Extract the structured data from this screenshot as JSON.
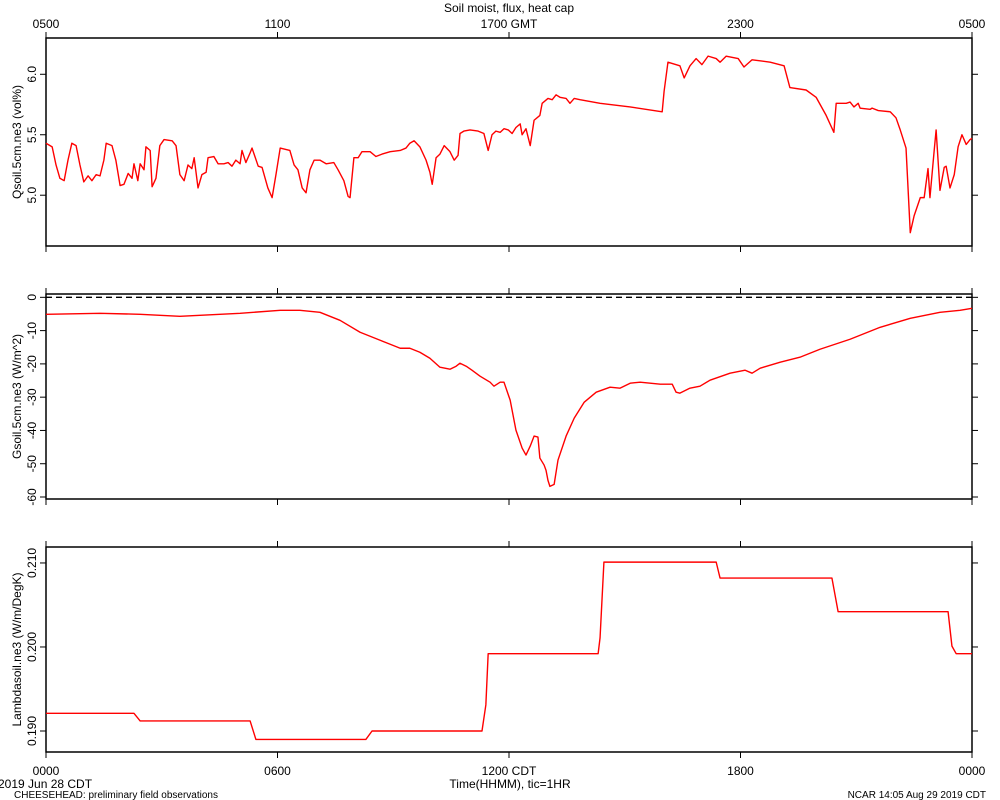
{
  "chart_data": [
    {
      "type": "line",
      "title": "Soil moist, flux, heat cap",
      "ylabel": "Qsoil.5cm.ne3 (vol%)",
      "color": "#ff0000",
      "xlim": [
        0,
        24
      ],
      "ylim": [
        4.58,
        6.3
      ],
      "x2ticks": [
        {
          "value": 0,
          "label": "0500"
        },
        {
          "value": 6,
          "label": "1100"
        },
        {
          "value": 12,
          "label": "1700 GMT"
        },
        {
          "value": 18,
          "label": "2300"
        },
        {
          "value": 24,
          "label": "0500"
        }
      ],
      "yticks": [
        {
          "value": 5,
          "label": "5.0"
        },
        5.5,
        {
          "value": 6,
          "label": "6.0"
        }
      ],
      "x": [
        0,
        0.16,
        0.26,
        0.36,
        0.47,
        0.57,
        0.67,
        0.78,
        0.88,
        0.98,
        1.09,
        1.19,
        1.3,
        1.4,
        1.5,
        1.56,
        1.71,
        1.81,
        1.92,
        2.02,
        2.13,
        2.23,
        2.28,
        2.38,
        2.44,
        2.54,
        2.59,
        2.7,
        2.75,
        2.85,
        2.95,
        3.06,
        3.27,
        3.37,
        3.47,
        3.58,
        3.68,
        3.78,
        3.84,
        3.94,
        4.04,
        4.15,
        4.2,
        4.35,
        4.46,
        4.61,
        4.72,
        4.82,
        4.92,
        5.03,
        5.08,
        5.18,
        5.29,
        5.34,
        5.5,
        5.6,
        5.75,
        5.86,
        5.96,
        6.07,
        6.32,
        6.43,
        6.53,
        6.64,
        6.74,
        6.84,
        6.95,
        7.1,
        7.26,
        7.46,
        7.57,
        7.72,
        7.83,
        7.88,
        7.98,
        8.09,
        8.19,
        8.4,
        8.55,
        8.71,
        8.92,
        9.18,
        9.33,
        9.43,
        9.54,
        9.69,
        9.85,
        9.95,
        10.01,
        10.11,
        10.21,
        10.32,
        10.47,
        10.58,
        10.68,
        10.73,
        10.83,
        10.99,
        11.2,
        11.35,
        11.46,
        11.56,
        11.66,
        11.77,
        11.87,
        11.98,
        12.08,
        12.18,
        12.29,
        12.34,
        12.44,
        12.55,
        12.65,
        12.8,
        12.86,
        13.01,
        13.12,
        13.22,
        13.32,
        13.48,
        13.58,
        13.69,
        13.84,
        14.36,
        15.14,
        15.97,
        16.02,
        16.12,
        16.43,
        16.54,
        16.69,
        16.85,
        17.0,
        17.16,
        17.37,
        17.47,
        17.63,
        17.94,
        18.09,
        18.3,
        18.77,
        19.13,
        19.28,
        19.7,
        19.96,
        20.22,
        20.42,
        20.48,
        20.74,
        20.84,
        20.94,
        21.05,
        21.1,
        21.36,
        21.41,
        21.57,
        21.88,
        22.03,
        22.14,
        22.29,
        22.4,
        22.5,
        22.66,
        22.76,
        22.86,
        22.91,
        23.02,
        23.07,
        23.17,
        23.28,
        23.33,
        23.43,
        23.54,
        23.64,
        23.74,
        23.85,
        23.95,
        24
      ],
      "values": [
        5.43,
        5.4,
        5.25,
        5.14,
        5.12,
        5.29,
        5.43,
        5.41,
        5.25,
        5.11,
        5.16,
        5.12,
        5.17,
        5.16,
        5.29,
        5.43,
        5.41,
        5.29,
        5.08,
        5.09,
        5.18,
        5.14,
        5.26,
        5.12,
        5.26,
        5.21,
        5.4,
        5.37,
        5.07,
        5.14,
        5.41,
        5.46,
        5.45,
        5.41,
        5.17,
        5.12,
        5.25,
        5.22,
        5.31,
        5.06,
        5.17,
        5.19,
        5.31,
        5.32,
        5.26,
        5.26,
        5.27,
        5.24,
        5.29,
        5.26,
        5.37,
        5.27,
        5.35,
        5.39,
        5.24,
        5.23,
        5.06,
        4.98,
        5.17,
        5.39,
        5.37,
        5.25,
        5.21,
        5.06,
        5.02,
        5.21,
        5.29,
        5.29,
        5.26,
        5.27,
        5.21,
        5.12,
        4.99,
        4.98,
        5.31,
        5.31,
        5.36,
        5.36,
        5.32,
        5.34,
        5.36,
        5.37,
        5.39,
        5.43,
        5.45,
        5.4,
        5.29,
        5.19,
        5.09,
        5.31,
        5.34,
        5.41,
        5.36,
        5.29,
        5.33,
        5.51,
        5.53,
        5.54,
        5.53,
        5.51,
        5.37,
        5.5,
        5.53,
        5.52,
        5.55,
        5.54,
        5.51,
        5.56,
        5.59,
        5.5,
        5.55,
        5.41,
        5.62,
        5.66,
        5.76,
        5.8,
        5.79,
        5.83,
        5.81,
        5.8,
        5.76,
        5.8,
        5.79,
        5.76,
        5.73,
        5.69,
        5.86,
        6.1,
        6.07,
        5.97,
        6.07,
        6.13,
        6.08,
        6.15,
        6.13,
        6.1,
        6.15,
        6.13,
        6.06,
        6.12,
        6.1,
        6.07,
        5.89,
        5.87,
        5.81,
        5.66,
        5.52,
        5.76,
        5.76,
        5.77,
        5.73,
        5.76,
        5.72,
        5.71,
        5.72,
        5.7,
        5.69,
        5.64,
        5.54,
        5.39,
        4.69,
        4.83,
        4.98,
        4.98,
        5.22,
        4.98,
        5.37,
        5.54,
        5.04,
        5.23,
        5.24,
        5.06,
        5.17,
        5.4,
        5.5,
        5.42,
        5.46,
        5.47
      ]
    },
    {
      "type": "line",
      "ylabel": "Gsoil.5cm.ne3 (W/m^2)",
      "color": "#ff0000",
      "reference_line": 0,
      "xlim": [
        0,
        24
      ],
      "ylim": [
        -60.6,
        1
      ],
      "yticks": [
        0,
        -10,
        -20,
        -30,
        -40,
        -50,
        -60
      ],
      "x": [
        0,
        1.4,
        2.44,
        3.47,
        3.99,
        5.03,
        6.07,
        6.58,
        7.1,
        7.62,
        8.14,
        8.66,
        8.92,
        9.18,
        9.43,
        9.69,
        9.95,
        10.21,
        10.47,
        10.63,
        10.73,
        10.89,
        11.04,
        11.25,
        11.51,
        11.61,
        11.77,
        11.87,
        12.03,
        12.18,
        12.34,
        12.44,
        12.55,
        12.65,
        12.75,
        12.8,
        12.91,
        12.96,
        13.01,
        13.06,
        13.17,
        13.27,
        13.48,
        13.69,
        13.95,
        14.26,
        14.62,
        14.88,
        15.14,
        15.4,
        15.66,
        15.92,
        16.23,
        16.33,
        16.43,
        16.69,
        16.95,
        17.21,
        17.73,
        18.12,
        18.3,
        18.51,
        19.03,
        19.54,
        20.06,
        20.84,
        21.62,
        22.4,
        23.17,
        23.69,
        24
      ],
      "values": [
        -5.1,
        -4.8,
        -5.1,
        -5.7,
        -5.4,
        -4.8,
        -3.9,
        -3.9,
        -4.5,
        -6.9,
        -10.5,
        -12.9,
        -14.1,
        -15.3,
        -15.3,
        -16.5,
        -18.3,
        -21.0,
        -21.6,
        -20.7,
        -19.8,
        -20.7,
        -21.9,
        -23.7,
        -25.5,
        -26.7,
        -25.5,
        -25.5,
        -30.9,
        -39.9,
        -45.3,
        -47.4,
        -44.7,
        -41.7,
        -42.0,
        -48.3,
        -50.4,
        -52.0,
        -55.0,
        -56.8,
        -56.2,
        -48.9,
        -41.7,
        -36.3,
        -31.5,
        -28.5,
        -27.0,
        -27.3,
        -25.8,
        -25.5,
        -25.8,
        -26.1,
        -26.1,
        -28.5,
        -28.8,
        -27.3,
        -26.7,
        -24.9,
        -22.8,
        -21.9,
        -22.8,
        -21.3,
        -19.5,
        -18.0,
        -15.6,
        -12.6,
        -9.0,
        -6.3,
        -4.5,
        -3.9,
        -3.3
      ]
    },
    {
      "type": "line",
      "ylabel": "Lambdasoil.ne3 (W/m/DegK)",
      "xlabel": "Time(HHMM), tic=1HR",
      "color": "#ff0000",
      "xlim": [
        0,
        24
      ],
      "ylim": [
        0.1875,
        0.2119
      ],
      "xticks": [
        {
          "value": 0,
          "label": "0000"
        },
        {
          "value": 6,
          "label": "0600"
        },
        {
          "value": 12,
          "label": "1200 CDT"
        },
        {
          "value": 18,
          "label": "1800"
        },
        {
          "value": 24,
          "label": "0000"
        }
      ],
      "yticks": [
        {
          "value": 0.19,
          "label": "0.190"
        },
        {
          "value": 0.2,
          "label": "0.200"
        },
        {
          "value": 0.21,
          "label": "0.210"
        }
      ],
      "x": [
        0,
        2.28,
        2.44,
        5.29,
        5.44,
        8.29,
        8.45,
        11.3,
        11.4,
        11.46,
        14.31,
        14.36,
        14.46,
        17.37,
        17.47,
        20.37,
        20.53,
        23.38,
        23.48,
        23.59,
        24
      ],
      "values": [
        0.1921,
        0.1921,
        0.1912,
        0.1912,
        0.189,
        0.189,
        0.19,
        0.19,
        0.1931,
        0.1992,
        0.1992,
        0.2011,
        0.2101,
        0.2101,
        0.2082,
        0.2082,
        0.2042,
        0.2042,
        0.2001,
        0.1992,
        0.1992
      ]
    }
  ],
  "footer": {
    "date": "2019 Jun 28 CDT",
    "project": "CHEESEHEAD: preliminary field observations",
    "credit": "NCAR 14:05 Aug 29 2019 CDT"
  }
}
